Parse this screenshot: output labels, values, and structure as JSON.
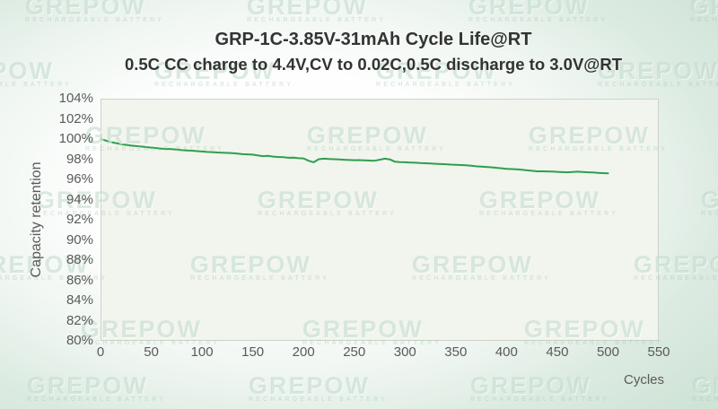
{
  "header": {
    "title": "GRP-1C-3.85V-31mAh Cycle Life@RT",
    "subtitle": "0.5C CC charge to 4.4V,CV to 0.02C,0.5C discharge to 3.0V@RT"
  },
  "watermark": {
    "text": "GREPOW",
    "caption": "RECHARGEABLE BATTERY"
  },
  "colors": {
    "line_green": "#2F9E4F",
    "plot_background": "#F1F5ED",
    "plot_border": "#CCD2CB",
    "background_green": "#CFE3D6",
    "title_text": "#333333",
    "axis_text": "#5A5A5A",
    "watermark_green": "#9EC5AE"
  },
  "chart_data": {
    "type": "line",
    "title": "GRP-1C-3.85V-31mAh Cycle Life@RT",
    "subtitle": "0.5C CC charge to 4.4V,CV to 0.02C,0.5C discharge to 3.0V@RT",
    "xlabel": "Cycles",
    "ylabel": "Capacity retention",
    "xlim": [
      0,
      550
    ],
    "ylim": [
      80,
      104
    ],
    "x_ticks": [
      "0",
      "50",
      "100",
      "150",
      "200",
      "250",
      "300",
      "350",
      "400",
      "450",
      "500",
      "550"
    ],
    "y_ticks": [
      "104%",
      "102%",
      "100%",
      "98%",
      "96%",
      "94%",
      "92%",
      "90%",
      "88%",
      "86%",
      "84%",
      "82%",
      "80%"
    ],
    "grid": false,
    "legend": "none",
    "series": [
      {
        "name": "Capacity retention",
        "x": [
          0,
          5,
          10,
          15,
          20,
          25,
          30,
          35,
          40,
          45,
          50,
          55,
          60,
          65,
          70,
          75,
          80,
          85,
          90,
          95,
          100,
          105,
          110,
          115,
          120,
          125,
          130,
          135,
          140,
          145,
          150,
          155,
          160,
          165,
          170,
          175,
          180,
          185,
          190,
          195,
          200,
          205,
          210,
          215,
          220,
          225,
          230,
          235,
          240,
          245,
          250,
          255,
          260,
          265,
          270,
          275,
          280,
          285,
          290,
          295,
          300,
          305,
          310,
          315,
          320,
          325,
          330,
          335,
          340,
          345,
          350,
          355,
          360,
          365,
          370,
          375,
          380,
          385,
          390,
          395,
          400,
          405,
          410,
          415,
          420,
          425,
          430,
          435,
          440,
          445,
          450,
          455,
          460,
          465,
          470,
          475,
          480,
          485,
          490,
          495,
          500
        ],
        "y": [
          100.0,
          99.85,
          99.7,
          99.6,
          99.5,
          99.42,
          99.35,
          99.3,
          99.25,
          99.2,
          99.15,
          99.1,
          99.05,
          99.02,
          99.0,
          98.95,
          98.9,
          98.87,
          98.84,
          98.8,
          98.76,
          98.72,
          98.7,
          98.67,
          98.65,
          98.62,
          98.6,
          98.55,
          98.5,
          98.48,
          98.45,
          98.38,
          98.3,
          98.33,
          98.26,
          98.22,
          98.2,
          98.14,
          98.16,
          98.1,
          98.08,
          97.85,
          97.7,
          98.0,
          98.05,
          98.02,
          98.0,
          97.97,
          97.95,
          97.92,
          97.9,
          97.91,
          97.89,
          97.87,
          97.85,
          97.95,
          98.05,
          97.98,
          97.75,
          97.72,
          97.7,
          97.67,
          97.65,
          97.62,
          97.6,
          97.57,
          97.55,
          97.52,
          97.5,
          97.47,
          97.45,
          97.42,
          97.4,
          97.35,
          97.3,
          97.27,
          97.24,
          97.2,
          97.15,
          97.1,
          97.05,
          97.02,
          97.0,
          96.95,
          96.9,
          96.85,
          96.8,
          96.8,
          96.79,
          96.77,
          96.75,
          96.72,
          96.7,
          96.73,
          96.76,
          96.73,
          96.7,
          96.68,
          96.65,
          96.62,
          96.6
        ]
      }
    ]
  }
}
